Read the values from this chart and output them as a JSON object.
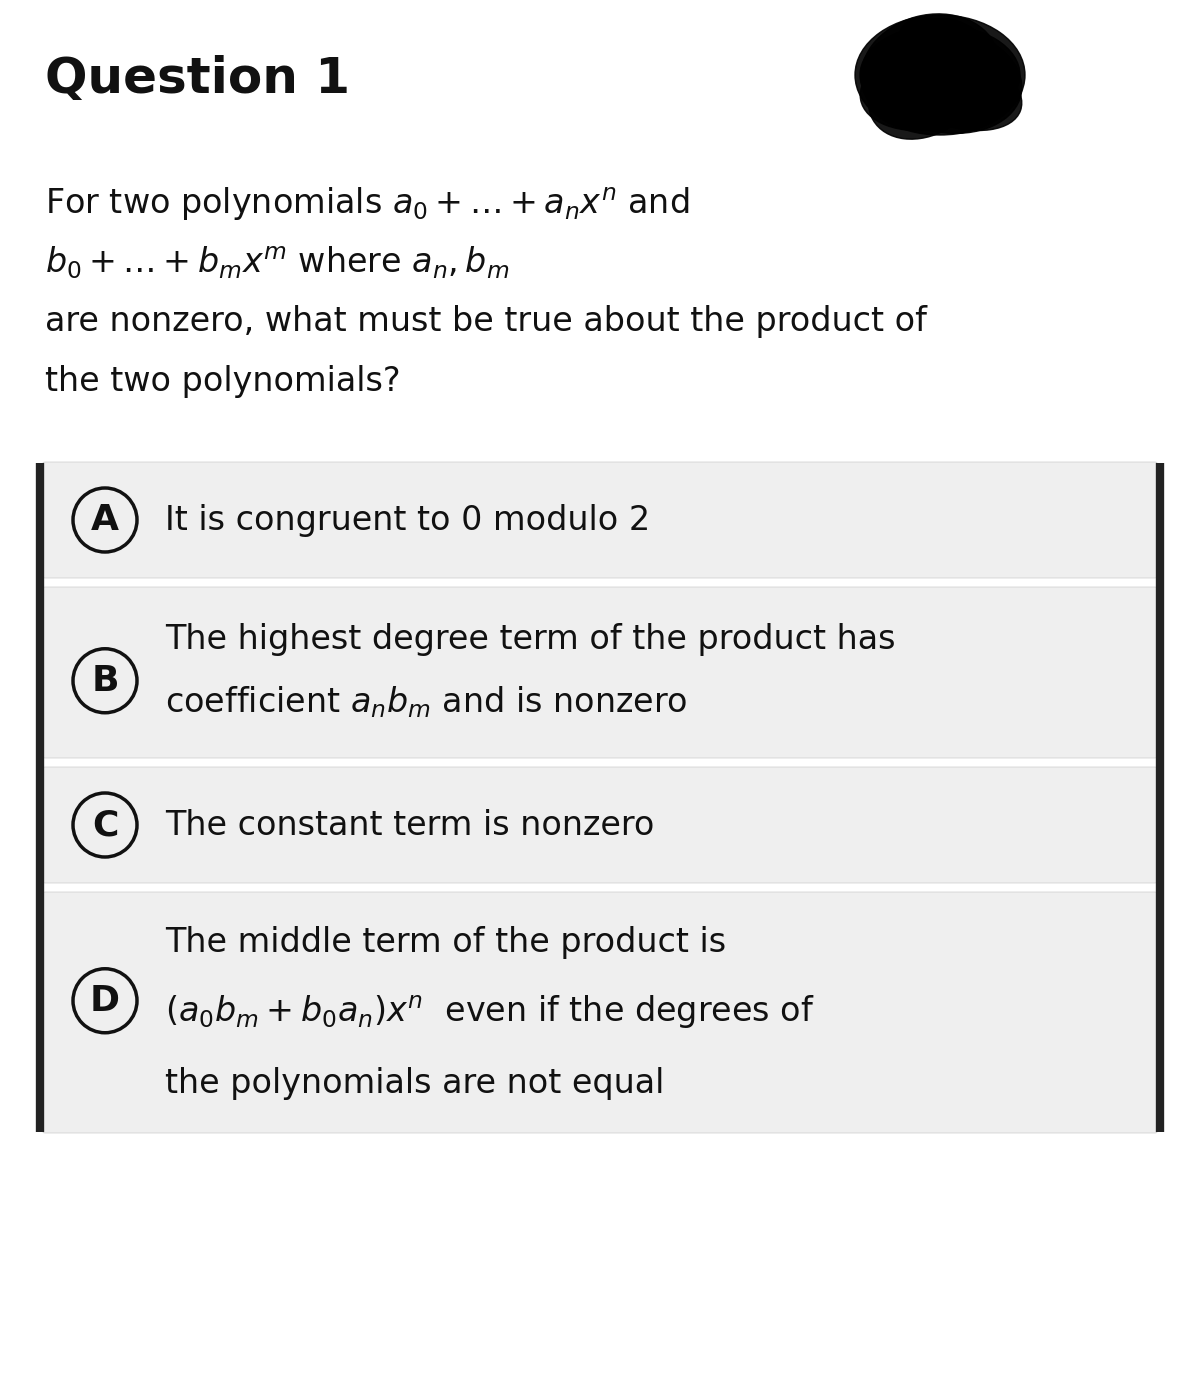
{
  "title": "Question 1",
  "title_fontsize": 36,
  "title_fontweight": "bold",
  "bg_color": "#ffffff",
  "q_line1": "For two polynomials $a_0 + \\ldots + a_nx^n$ and",
  "q_line2": "$b_0 + \\ldots + b_mx^m$ where $a_n, b_m$",
  "q_line3": "are nonzero, what must be true about the product of",
  "q_line4": "the two polynomials?",
  "option_bg": "#efefef",
  "option_border": "#cccccc",
  "text_color": "#111111",
  "circle_color": "#111111",
  "bar_color": "#222222",
  "opt_A_text1": "It is congruent to 0 modulo 2",
  "opt_B_text1": "The highest degree term of the product has",
  "opt_B_text2": "coefficient $a_nb_m$ and is nonzero",
  "opt_C_text1": "The constant term is nonzero",
  "opt_D_text1": "The middle term of the product is",
  "opt_D_text2": "$(a_0b_m + b_0a_n)x^n$  even if the degrees of",
  "opt_D_text3": "the polynomials are not equal",
  "qfs": 24,
  "opt_fs": 24
}
